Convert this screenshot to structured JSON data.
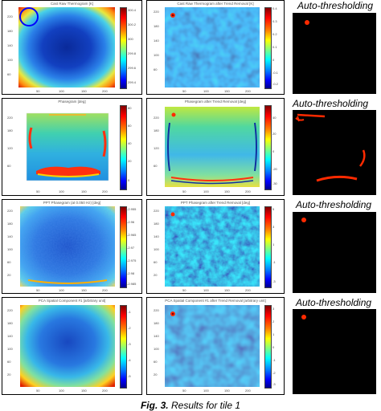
{
  "rows": [
    {
      "left_title": "Cast Raw Thermogram [K]",
      "left_yticks": [
        "240",
        "220",
        "200",
        "180",
        "160",
        "140",
        "120",
        "100",
        "80",
        "60",
        "40",
        "20"
      ],
      "left_xticks": [
        "50",
        "100",
        "150",
        "200"
      ],
      "left_cbar_ticks": [
        "300.4",
        "300.2",
        "300",
        "299.8",
        "299.6",
        "299.4"
      ],
      "mid_title": "Cast Raw Thermogram after Trend Removal [K]",
      "mid_yticks": [
        "220",
        "200",
        "180",
        "160",
        "140",
        "120",
        "100",
        "80",
        "60",
        "40",
        "20"
      ],
      "mid_xticks": [
        "50",
        "100",
        "150",
        "200"
      ],
      "mid_cbar_ticks": [
        "0.4",
        "0.3",
        "0.2",
        "0.1",
        "0",
        "-0.1",
        "-0.2"
      ],
      "right_title": "Auto-thresholding"
    },
    {
      "left_title": "Phasegram [deg]",
      "left_yticks": [
        "220",
        "200",
        "180",
        "160",
        "140",
        "120",
        "100",
        "80",
        "60",
        "40",
        "20"
      ],
      "left_xticks": [
        "50",
        "100",
        "150",
        "200"
      ],
      "left_cbar_ticks": [
        "80",
        "70",
        "60",
        "50",
        "40",
        "30",
        "20",
        "10",
        "0"
      ],
      "mid_title": "Phasegram after Trend Removal [deg]",
      "mid_yticks": [
        "220",
        "200",
        "180",
        "160",
        "140",
        "120",
        "100",
        "80",
        "60",
        "40",
        "20"
      ],
      "mid_xticks": [
        "50",
        "100",
        "150",
        "200"
      ],
      "mid_cbar_ticks": [
        "40",
        "30",
        "20",
        "10",
        "0",
        "-10",
        "-20",
        "-30"
      ],
      "right_title": "Auto-thresholding"
    },
    {
      "left_title": "PPT Phasegram (at 0.050 Hz) [deg]",
      "left_yticks": [
        "220",
        "200",
        "180",
        "160",
        "140",
        "120",
        "100",
        "80",
        "60",
        "40",
        "20"
      ],
      "left_xticks": [
        "50",
        "100",
        "150",
        "200"
      ],
      "left_cbar_ticks": [
        "-2.955",
        "-2.96",
        "-2.965",
        "-2.97",
        "-2.975",
        "-2.98",
        "-2.985"
      ],
      "mid_title": "PPT Phasegram after Trend Removal [deg]",
      "mid_yticks": [
        "220",
        "200",
        "180",
        "160",
        "140",
        "120",
        "100",
        "80",
        "60",
        "40",
        "20"
      ],
      "mid_xticks": [
        "50",
        "100",
        "150",
        "200"
      ],
      "mid_cbar_ticks": [
        "5",
        "4",
        "3",
        "2",
        "1",
        "0",
        "-1",
        "-2",
        "-3"
      ],
      "right_title": "Auto-thresholding"
    },
    {
      "left_title": "PCA Spatial Component #1 [arbitrary unit]",
      "left_yticks": [
        "220",
        "200",
        "180",
        "160",
        "140",
        "120",
        "100",
        "80",
        "60",
        "40",
        "20"
      ],
      "left_xticks": [
        "50",
        "100",
        "150",
        "200"
      ],
      "left_cbar_ticks": [
        "-1",
        "-2",
        "-3",
        "-4",
        "-5"
      ],
      "mid_title": "PCA Spatial Component #1 after Trend Removal [arbitrary unit]",
      "mid_yticks": [
        "220",
        "200",
        "180",
        "160",
        "140",
        "120",
        "100",
        "80",
        "60",
        "40",
        "20"
      ],
      "mid_xticks": [
        "50",
        "100",
        "150",
        "200"
      ],
      "mid_cbar_ticks": [
        "3",
        "2",
        "1",
        "0",
        "-1",
        "-2",
        "-3"
      ],
      "right_title": "Auto-thresholding"
    }
  ],
  "caption": {
    "label": "Fig. 3.",
    "text": "Results for tile 1"
  },
  "colors": {
    "jet_high": "#ff0000",
    "jet_low": "#00008f",
    "defect_red": "#ff2a00",
    "highlight_circle": "#0000ff"
  }
}
